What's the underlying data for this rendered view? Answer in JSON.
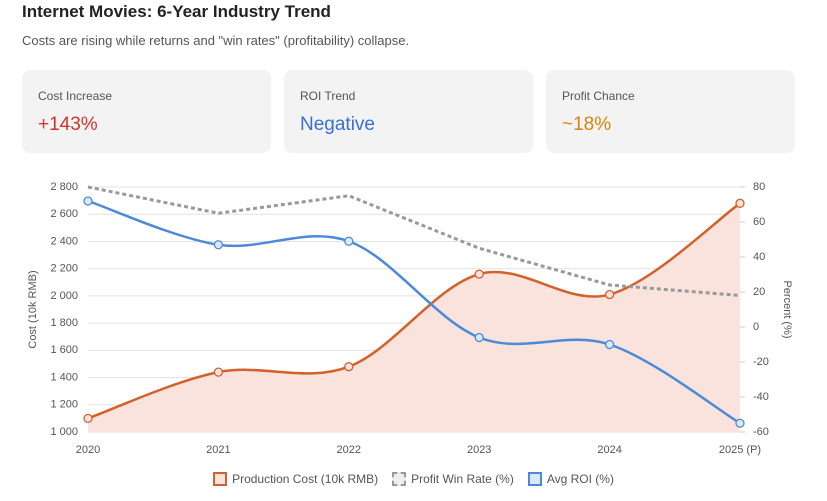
{
  "header": {
    "title": "Internet Movies: 6-Year Industry Trend",
    "subtitle": "Costs are rising while returns and \"win rates\" (profitability) collapse."
  },
  "cards": [
    {
      "label": "Cost Increase",
      "value": "+143%",
      "color": "#d0352b"
    },
    {
      "label": "ROI Trend",
      "value": "Negative",
      "color": "#3a6fd6"
    },
    {
      "label": "Profit Chance",
      "value": "~18%",
      "color": "#d4850f"
    }
  ],
  "chart_data": {
    "type": "line",
    "categories": [
      "2020",
      "2021",
      "2022",
      "2023",
      "2024",
      "2025 (P)"
    ],
    "y_label": "Cost (10k RMB)",
    "y2_label": "Percent (%)",
    "ylim": [
      1000,
      2800
    ],
    "yticks": [
      {
        "value": 1000,
        "label": "1 000"
      },
      {
        "value": 1200,
        "label": "1 200"
      },
      {
        "value": 1400,
        "label": "1 400"
      },
      {
        "value": 1600,
        "label": "1 600"
      },
      {
        "value": 1800,
        "label": "1 800"
      },
      {
        "value": 2000,
        "label": "2 000"
      },
      {
        "value": 2200,
        "label": "2 200"
      },
      {
        "value": 2400,
        "label": "2 400"
      },
      {
        "value": 2600,
        "label": "2 600"
      },
      {
        "value": 2800,
        "label": "2 800"
      }
    ],
    "y2lim": [
      -60,
      80
    ],
    "y2ticks": [
      -60,
      -40,
      -20,
      0,
      20,
      40,
      60,
      80
    ],
    "grid": true,
    "legend": "bottom",
    "series": [
      {
        "name": "Production Cost (10k RMB)",
        "color": "#d2612c",
        "values": [
          1100,
          1440,
          1480,
          2160,
          2010,
          2680
        ],
        "fill": "#f9e3dc",
        "markers": true,
        "smooth": true
      },
      {
        "name": "Profit Win Rate (%)",
        "color": "#999999",
        "values": [
          80,
          65,
          75,
          45,
          24,
          18
        ],
        "axis": "y2",
        "dashed": true
      },
      {
        "name": "Avg ROI (%)",
        "color": "#4a8ad9",
        "values": [
          72,
          47,
          49,
          -6,
          -10,
          -55
        ],
        "axis": "y2",
        "markers": true,
        "smooth": true
      }
    ]
  }
}
